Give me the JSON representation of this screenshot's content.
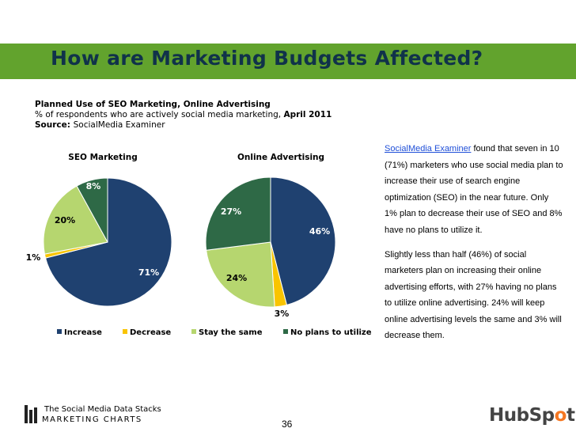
{
  "slide": {
    "title": "How are Marketing Budgets Affected?",
    "subtitle_bold": "Planned Use of SEO Marketing, Online Advertising",
    "subtitle_line2": "% of respondents who are actively social media marketing, ",
    "subtitle_date": "April 2011",
    "source_label": "Source: ",
    "source_value": "SocialMedia Examiner",
    "page_number": "36"
  },
  "chart_data": [
    {
      "type": "pie",
      "title": "SEO Marketing",
      "categories": [
        "Increase",
        "Decrease",
        "Stay the same",
        "No plans to utilize"
      ],
      "values": [
        71,
        1,
        20,
        8
      ],
      "labels": [
        "71%",
        "1%",
        "20%",
        "8%"
      ]
    },
    {
      "type": "pie",
      "title": "Online Advertising",
      "categories": [
        "Increase",
        "Decrease",
        "Stay the same",
        "No plans to utilize"
      ],
      "values": [
        46,
        3,
        24,
        27
      ],
      "labels": [
        "46%",
        "3%",
        "24%",
        "27%"
      ]
    }
  ],
  "legend": {
    "placement": "bottom",
    "items": [
      {
        "label": "Increase",
        "color": "#1f4170"
      },
      {
        "label": "Decrease",
        "color": "#f9c400"
      },
      {
        "label": "Stay the same",
        "color": "#b6d66f"
      },
      {
        "label": "No plans to utilize",
        "color": "#2e6946"
      }
    ]
  },
  "commentary": {
    "p1_link": "SocialMedia Examiner",
    "p1_text": " found that seven in 10 (71%) marketers who use social media plan to increase their use of search engine optimization (SEO) in the near future. Only 1% plan to decrease their use of SEO and 8% have no plans to utilize it.",
    "p2_text": "Slightly less than half (46%) of social marketers plan on increasing their online advertising efforts, with 27% having no plans to utilize online advertising. 24% will keep online advertising levels the same and 3% will decrease them."
  },
  "footer": {
    "line1": "The Social Media Data Stacks",
    "line2": "MARKETING CHARTS",
    "hubspot_pre": "HubSp",
    "hubspot_o": "o",
    "hubspot_post": "t"
  },
  "colors": {
    "banner": "#62a32d",
    "title_text": "#10324a",
    "increase": "#1f4170",
    "decrease": "#f9c400",
    "stay": "#b6d66f",
    "no_plans": "#2e6946"
  }
}
